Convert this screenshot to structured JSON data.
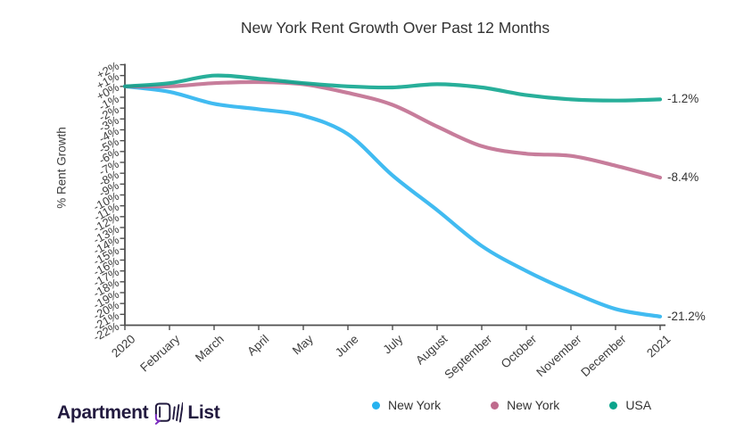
{
  "chart_data": {
    "type": "line",
    "title": "New York Rent Growth Over Past 12 Months",
    "ylabel": "% Rent Growth",
    "xlabel": "",
    "ylim": [
      -22,
      2
    ],
    "grid": false,
    "legend_position": "bottom",
    "categories": [
      "2020",
      "February",
      "March",
      "April",
      "May",
      "June",
      "July",
      "August",
      "September",
      "October",
      "November",
      "December",
      "2021"
    ],
    "y_tick_labels": [
      "+2%",
      "+1%",
      "+0%",
      "-1%",
      "-2%",
      "-3%",
      "-4%",
      "-5%",
      "-6%",
      "-7%",
      "-8%",
      "-9%",
      "-10%",
      "-11%",
      "-12%",
      "-13%",
      "-14%",
      "-15%",
      "-16%",
      "-17%",
      "-18%",
      "-19%",
      "-20%",
      "-21%",
      "-22%"
    ],
    "series": [
      {
        "name": "New York",
        "color": "#27b2ef",
        "end_label": "-21.2%",
        "values": [
          0,
          -0.5,
          -1.6,
          -2.1,
          -2.7,
          -4.4,
          -8.2,
          -11.4,
          -14.7,
          -17.0,
          -18.9,
          -20.5,
          -21.2
        ]
      },
      {
        "name": "New York",
        "color": "#bf6b8d",
        "end_label": "-8.4%",
        "values": [
          0,
          0,
          0.3,
          0.4,
          0.2,
          -0.6,
          -1.7,
          -3.7,
          -5.5,
          -6.2,
          -6.4,
          -7.3,
          -8.4
        ]
      },
      {
        "name": "USA",
        "color": "#0aa48c",
        "end_label": "-1.2%",
        "values": [
          0,
          0.3,
          1.0,
          0.7,
          0.3,
          0,
          -0.1,
          0.2,
          -0.1,
          -0.8,
          -1.2,
          -1.3,
          -1.2
        ]
      }
    ]
  },
  "logo": {
    "word1": "Apartment",
    "word2": "List",
    "text_color": "#221a3f",
    "accent_color": "#7b2cbf"
  }
}
